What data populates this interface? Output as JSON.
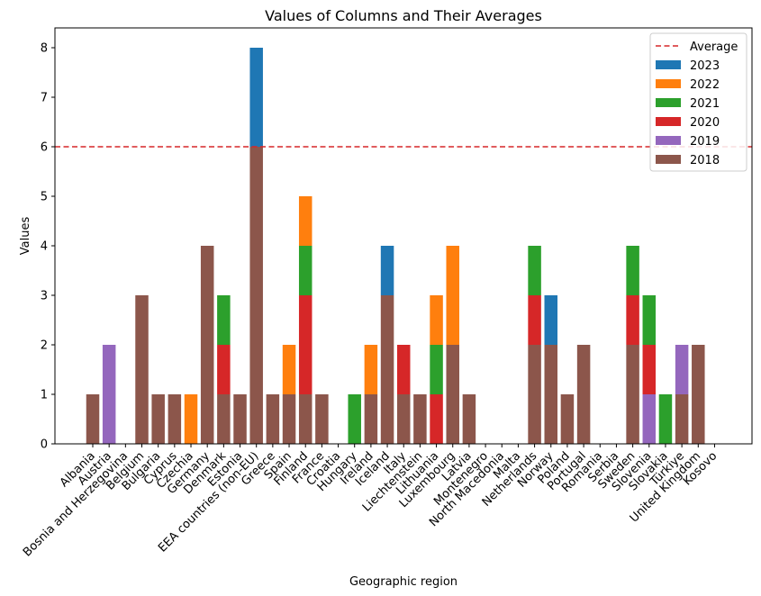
{
  "chart_data": {
    "type": "bar",
    "stacked": true,
    "title": "Values of Columns and Their Averages",
    "xlabel": "Geographic region",
    "ylabel": "Values",
    "ylim": [
      0,
      8.4
    ],
    "yticks": [
      0,
      1,
      2,
      3,
      4,
      5,
      6,
      7,
      8
    ],
    "legend_position": "top-right",
    "average": {
      "label": "Average",
      "value": 6,
      "color": "#d62728"
    },
    "categories": [
      "Albania",
      "Austria",
      "Bosnia and Herzegovina",
      "Belgium",
      "Bulgaria",
      "Cyprus",
      "Czechia",
      "Germany",
      "Denmark",
      "Estonia",
      "EEA countries (non-EU)",
      "Greece",
      "Spain",
      "Finland",
      "France",
      "Croatia",
      "Hungary",
      "Ireland",
      "Iceland",
      "Italy",
      "Liechtenstein",
      "Lithuania",
      "Luxembourg",
      "Latvia",
      "Montenegro",
      "North Macedonia",
      "Malta",
      "Netherlands",
      "Norway",
      "Poland",
      "Portugal",
      "Romania",
      "Serbia",
      "Sweden",
      "Slovenia",
      "Slovakia",
      "Türkiye",
      "United Kingdom",
      "Kosovo"
    ],
    "series": [
      {
        "name": "2018",
        "color": "#8c564b",
        "values": [
          1,
          0,
          0,
          3,
          1,
          1,
          0,
          4,
          1,
          1,
          6,
          1,
          1,
          1,
          1,
          0,
          0,
          1,
          3,
          1,
          1,
          0,
          2,
          1,
          0,
          0,
          0,
          2,
          2,
          1,
          2,
          0,
          0,
          2,
          0,
          0,
          1,
          2,
          0
        ]
      },
      {
        "name": "2019",
        "color": "#9467bd",
        "values": [
          0,
          2,
          0,
          0,
          0,
          0,
          0,
          0,
          0,
          0,
          0,
          0,
          0,
          0,
          0,
          0,
          0,
          0,
          0,
          0,
          0,
          0,
          0,
          0,
          0,
          0,
          0,
          0,
          0,
          0,
          0,
          0,
          0,
          0,
          1,
          0,
          1,
          0,
          0
        ]
      },
      {
        "name": "2020",
        "color": "#d62728",
        "values": [
          0,
          0,
          0,
          0,
          0,
          0,
          0,
          0,
          1,
          0,
          0,
          0,
          0,
          2,
          0,
          0,
          0,
          0,
          0,
          1,
          0,
          1,
          0,
          0,
          0,
          0,
          0,
          1,
          0,
          0,
          0,
          0,
          0,
          1,
          1,
          0,
          0,
          0,
          0
        ]
      },
      {
        "name": "2021",
        "color": "#2ca02c",
        "values": [
          0,
          0,
          0,
          0,
          0,
          0,
          0,
          0,
          1,
          0,
          0,
          0,
          0,
          1,
          0,
          0,
          1,
          0,
          0,
          0,
          0,
          1,
          0,
          0,
          0,
          0,
          0,
          1,
          0,
          0,
          0,
          0,
          0,
          1,
          1,
          1,
          0,
          0,
          0
        ]
      },
      {
        "name": "2022",
        "color": "#ff7f0e",
        "values": [
          0,
          0,
          0,
          0,
          0,
          0,
          1,
          0,
          0,
          0,
          0,
          0,
          1,
          1,
          0,
          0,
          0,
          1,
          0,
          0,
          0,
          1,
          2,
          0,
          0,
          0,
          0,
          0,
          0,
          0,
          0,
          0,
          0,
          0,
          0,
          0,
          0,
          0,
          0
        ]
      },
      {
        "name": "2023",
        "color": "#1f77b4",
        "values": [
          0,
          0,
          0,
          0,
          0,
          0,
          0,
          0,
          0,
          0,
          2,
          0,
          0,
          0,
          0,
          0,
          0,
          0,
          1,
          0,
          0,
          0,
          0,
          0,
          0,
          0,
          0,
          0,
          1,
          0,
          0,
          0,
          0,
          0,
          0,
          0,
          0,
          0,
          0
        ]
      }
    ],
    "legend_order": [
      "Average",
      "2023",
      "2022",
      "2021",
      "2020",
      "2019",
      "2018"
    ]
  }
}
